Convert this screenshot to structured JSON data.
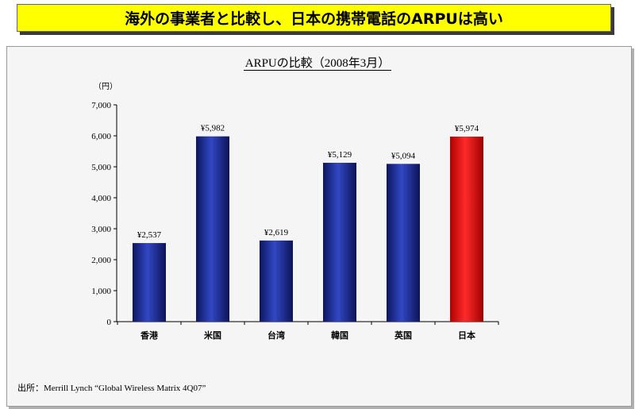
{
  "headline": "海外の事業者と比較し、日本の携帯電話のARPUは高い",
  "source": "出所：Merrill Lynch “Global Wireless Matrix 4Q07”",
  "colors": {
    "default_bar": "#1e2b8c",
    "highlight_bar": "#ff0000"
  },
  "chart_data": {
    "type": "bar",
    "title": "ARPUの比較（2008年3月）",
    "ylabel": "（円）",
    "xlabel": "",
    "categories": [
      "香港",
      "米国",
      "台湾",
      "韓国",
      "英国",
      "日本"
    ],
    "values": [
      2537,
      5982,
      2619,
      5129,
      5094,
      5974
    ],
    "data_labels": [
      "¥2,537",
      "¥5,982",
      "¥2,619",
      "¥5,129",
      "¥5,094",
      "¥5,974"
    ],
    "highlight": [
      "日本"
    ],
    "ylim": [
      0,
      7000
    ],
    "yticks": [
      0,
      1000,
      2000,
      3000,
      4000,
      5000,
      6000,
      7000
    ],
    "ytick_labels": [
      "0",
      "1,000",
      "2,000",
      "3,000",
      "4,000",
      "5,000",
      "6,000",
      "7,000"
    ],
    "grid": false,
    "legend": "none"
  }
}
